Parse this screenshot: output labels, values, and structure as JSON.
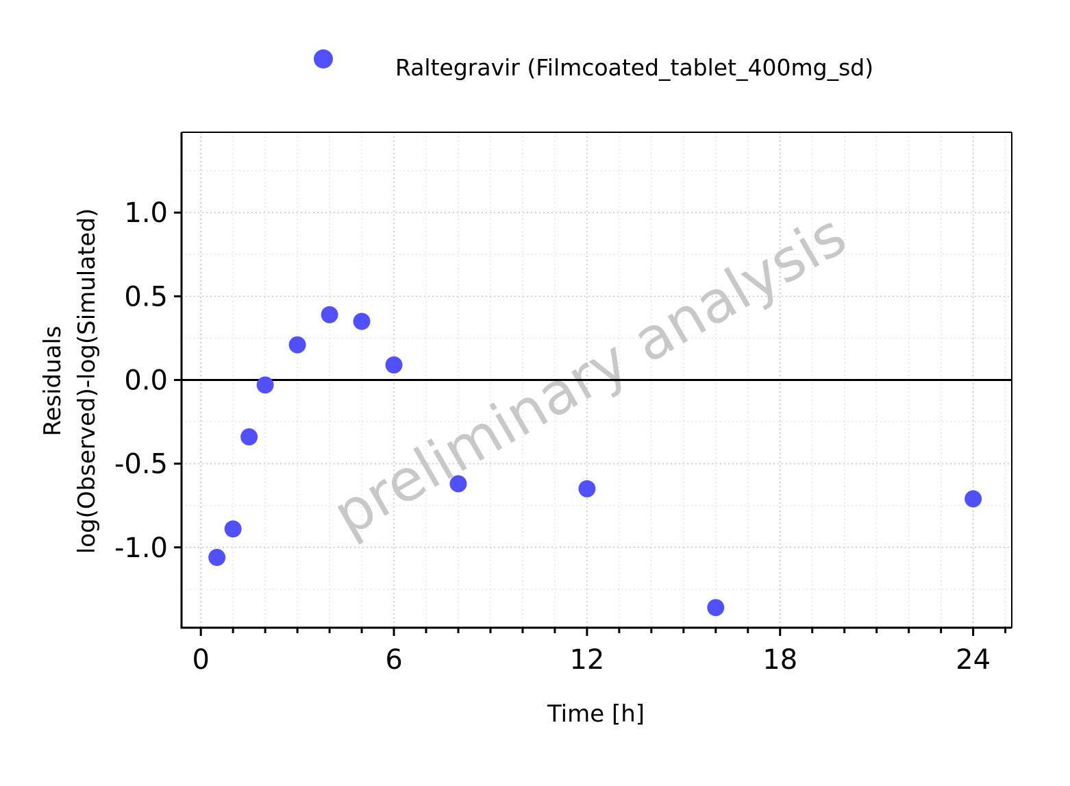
{
  "chart_data": {
    "type": "scatter",
    "xlabel": "Time [h]",
    "ylabel": [
      "Residuals",
      "log(Observed)-log(Simulated)"
    ],
    "xlim": [
      -0.6,
      25.2
    ],
    "ylim": [
      -1.48,
      1.48
    ],
    "x_ticks": [
      0,
      6,
      12,
      18,
      24
    ],
    "x_tick_labels": [
      "0",
      "6",
      "12",
      "18",
      "24"
    ],
    "x_minor_step": 1,
    "y_ticks": [
      1.0,
      0.5,
      0.0,
      -0.5,
      -1.0
    ],
    "y_tick_labels": [
      "1.0",
      "0.5",
      "0.0",
      "-0.5",
      "-1.0"
    ],
    "y_minor_step": 0.25,
    "grid": true,
    "reference_line_y": 0,
    "legend_position": "top",
    "watermark": "preliminary analysis",
    "series": [
      {
        "name": "Raltegravir (Filmcoated_tablet_400mg_sd)",
        "color": "#5050ff",
        "marker": "circle",
        "points": [
          {
            "x": 0.5,
            "y": -1.06
          },
          {
            "x": 1.0,
            "y": -0.89
          },
          {
            "x": 1.5,
            "y": -0.34
          },
          {
            "x": 2.0,
            "y": -0.03
          },
          {
            "x": 3.0,
            "y": 0.21
          },
          {
            "x": 4.0,
            "y": 0.39
          },
          {
            "x": 5.0,
            "y": 0.35
          },
          {
            "x": 6.0,
            "y": 0.09
          },
          {
            "x": 8.0,
            "y": -0.62
          },
          {
            "x": 12.0,
            "y": -0.65
          },
          {
            "x": 16.0,
            "y": -1.36
          },
          {
            "x": 24.0,
            "y": -0.71
          }
        ]
      }
    ]
  }
}
